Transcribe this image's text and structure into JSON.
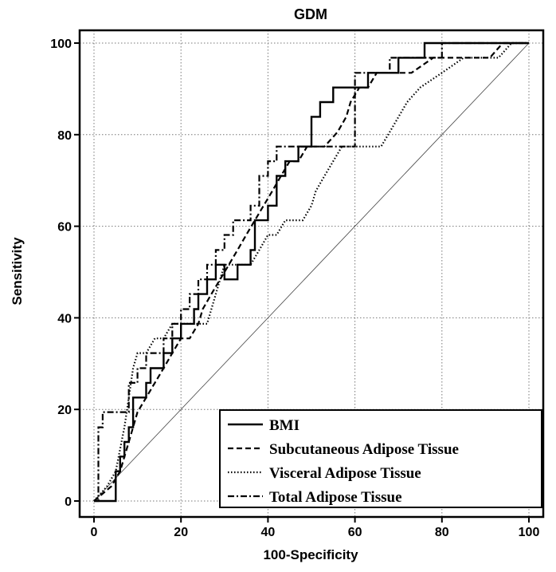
{
  "chart_data": {
    "type": "line",
    "title": "GDM",
    "xlabel": "100-Specificity",
    "ylabel": "Sensitivity",
    "xlim": [
      0,
      100
    ],
    "ylim": [
      0,
      100
    ],
    "xticks": [
      "0",
      "20",
      "40",
      "60",
      "80",
      "100"
    ],
    "yticks": [
      "0",
      "20",
      "40",
      "60",
      "80",
      "100"
    ],
    "grid": true,
    "legend_position": "bottom-right",
    "reference_line": {
      "x": [
        0,
        100
      ],
      "y": [
        0,
        100
      ]
    },
    "series": [
      {
        "name": "BMI",
        "style": "solid",
        "x": [
          0,
          5,
          5,
          6,
          6,
          7,
          7,
          8,
          8,
          9,
          9,
          12,
          12,
          13,
          13,
          16,
          16,
          18,
          18,
          20,
          20,
          23,
          23,
          24,
          24,
          26,
          26,
          28,
          28,
          30,
          30,
          33,
          33,
          36,
          36,
          37,
          37,
          40,
          40,
          42,
          42,
          44,
          44,
          47,
          47,
          50,
          50,
          52,
          52,
          55,
          55,
          63,
          63,
          70,
          70,
          76,
          76,
          88,
          88,
          100
        ],
        "y": [
          0,
          0,
          6.5,
          6.5,
          9.7,
          9.7,
          12.9,
          12.9,
          16.1,
          16.1,
          22.6,
          22.6,
          25.8,
          25.8,
          29,
          29,
          32.3,
          32.3,
          35.5,
          35.5,
          38.7,
          38.7,
          41.9,
          41.9,
          45.2,
          45.2,
          48.4,
          48.4,
          51.6,
          51.6,
          48.4,
          48.4,
          51.6,
          51.6,
          54.8,
          54.8,
          61.3,
          61.3,
          64.5,
          64.5,
          71,
          71,
          74.2,
          74.2,
          77.4,
          77.4,
          83.9,
          83.9,
          87.1,
          87.1,
          90.3,
          90.3,
          93.5,
          93.5,
          96.8,
          96.8,
          100,
          100,
          100,
          100
        ]
      },
      {
        "name": "Subcutaneous Adipose Tissue",
        "style": "dashed",
        "x": [
          0,
          4,
          6,
          8,
          10,
          12,
          14,
          16,
          18,
          20,
          22,
          24,
          25,
          27,
          29,
          31,
          33,
          35,
          37,
          39,
          41,
          43,
          45,
          47,
          49,
          51,
          53,
          56,
          58,
          59,
          61,
          63,
          65,
          67,
          71,
          73,
          78,
          91,
          94,
          100
        ],
        "y": [
          0,
          3.2,
          6.5,
          12.9,
          19.4,
          22.6,
          25.8,
          29,
          32.3,
          35.5,
          35.5,
          38.7,
          41.9,
          45.2,
          48.4,
          51.6,
          54.8,
          58.1,
          61.3,
          64.5,
          67.7,
          71,
          74.2,
          74.2,
          77.4,
          77.4,
          77.4,
          80.6,
          83.9,
          87.1,
          90.3,
          90.3,
          93.5,
          93.5,
          93.5,
          93.5,
          96.8,
          96.8,
          100,
          100
        ]
      },
      {
        "name": "Visceral Adipose Tissue",
        "style": "dotted",
        "x": [
          0,
          3,
          5,
          7,
          8,
          9,
          10,
          12,
          14,
          16,
          18,
          20,
          22,
          26,
          28,
          30,
          36,
          38,
          40,
          42,
          44,
          46,
          48,
          50,
          51,
          53,
          55,
          57,
          59,
          66,
          68,
          72,
          75,
          80,
          85,
          90,
          93,
          96,
          100
        ],
        "y": [
          0,
          3.2,
          6.5,
          16.1,
          22.6,
          29,
          32.3,
          32.3,
          35.5,
          35.5,
          38.7,
          38.7,
          38.7,
          38.7,
          45.2,
          51.6,
          51.6,
          54.8,
          58.1,
          58.1,
          61.3,
          61.3,
          61.3,
          64.5,
          67.7,
          71,
          74.2,
          77.4,
          77.4,
          77.4,
          80.6,
          87.1,
          90.3,
          93.5,
          96.8,
          96.8,
          96.8,
          100,
          100
        ]
      },
      {
        "name": "Total Adipose Tissue",
        "style": "dashdot",
        "x": [
          0,
          1,
          1,
          2,
          2,
          3,
          3,
          8,
          8,
          10,
          10,
          12,
          12,
          14,
          14,
          16,
          16,
          18,
          18,
          20,
          20,
          22,
          22,
          24,
          24,
          26,
          26,
          28,
          28,
          30,
          30,
          32,
          32,
          34,
          34,
          36,
          36,
          38,
          38,
          40,
          40,
          42,
          42,
          44,
          44,
          54,
          54,
          60,
          60,
          68,
          68,
          73,
          73,
          80,
          80,
          90,
          90,
          100
        ],
        "y": [
          0,
          0,
          16.1,
          16.1,
          19.4,
          19.4,
          19.4,
          19.4,
          25.8,
          25.8,
          29,
          29,
          32.3,
          32.3,
          32.3,
          32.3,
          35.5,
          35.5,
          38.7,
          38.7,
          41.9,
          41.9,
          45.2,
          45.2,
          48.4,
          48.4,
          51.6,
          51.6,
          54.8,
          54.8,
          58.1,
          58.1,
          61.3,
          61.3,
          61.3,
          61.3,
          64.5,
          64.5,
          71,
          71,
          74.2,
          74.2,
          77.4,
          77.4,
          77.4,
          77.4,
          77.4,
          77.4,
          93.5,
          93.5,
          96.8,
          96.8,
          96.8,
          96.8,
          100,
          100,
          100,
          100
        ]
      }
    ]
  }
}
